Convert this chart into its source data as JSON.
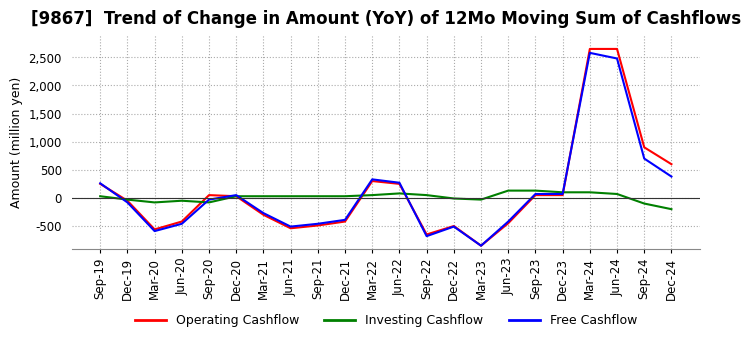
{
  "title": "[9867]  Trend of Change in Amount (YoY) of 12Mo Moving Sum of Cashflows",
  "ylabel": "Amount (million yen)",
  "x_labels": [
    "Sep-19",
    "Dec-19",
    "Mar-20",
    "Jun-20",
    "Sep-20",
    "Dec-20",
    "Mar-21",
    "Jun-21",
    "Sep-21",
    "Dec-21",
    "Mar-22",
    "Jun-22",
    "Sep-22",
    "Dec-22",
    "Mar-23",
    "Jun-23",
    "Sep-23",
    "Dec-23",
    "Mar-24",
    "Jun-24",
    "Sep-24",
    "Dec-24"
  ],
  "operating": [
    250,
    -50,
    -560,
    -420,
    50,
    30,
    -300,
    -540,
    -490,
    -420,
    300,
    250,
    -650,
    -500,
    -850,
    -450,
    50,
    50,
    2650,
    2650,
    900,
    600
  ],
  "investing": [
    30,
    -30,
    -80,
    -50,
    -80,
    30,
    30,
    30,
    30,
    30,
    50,
    80,
    50,
    -10,
    -30,
    130,
    130,
    100,
    100,
    70,
    -100,
    -200
  ],
  "free": [
    260,
    -80,
    -590,
    -460,
    -30,
    50,
    -270,
    -510,
    -460,
    -390,
    330,
    270,
    -680,
    -510,
    -850,
    -420,
    70,
    70,
    2580,
    2480,
    700,
    380
  ],
  "ylim": [
    -900,
    2900
  ],
  "yticks": [
    -500,
    0,
    500,
    1000,
    1500,
    2000,
    2500
  ],
  "colors": {
    "operating": "#FF0000",
    "investing": "#008000",
    "free": "#0000FF"
  },
  "legend_labels": [
    "Operating Cashflow",
    "Investing Cashflow",
    "Free Cashflow"
  ],
  "grid_color": "#AAAAAA",
  "bg_color": "#FFFFFF",
  "title_fontsize": 12,
  "label_fontsize": 9,
  "tick_fontsize": 8.5
}
